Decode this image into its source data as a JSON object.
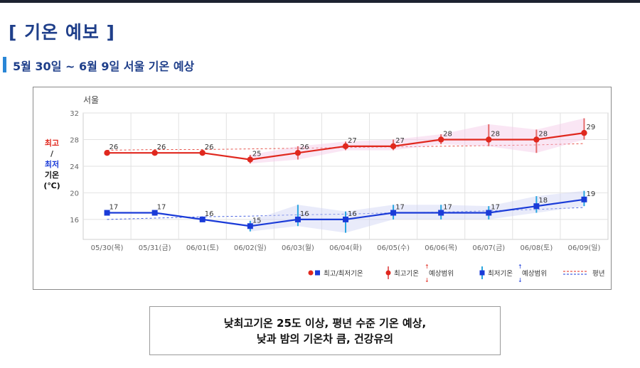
{
  "header": {
    "title": "[ 기온 예보 ]",
    "subtitle": "5월 30일 ~ 6월 9일 서울 기온 예상"
  },
  "caption": {
    "line1": "낮최고기온 25도 이상, 평년 수준 기온 예상,",
    "line2": "낮과 밤의 기온차 큼, 건강유의"
  },
  "chart_data": {
    "type": "line",
    "title": "서울",
    "ylabel_lines": [
      "최고",
      "/",
      "최저",
      "기온",
      "(℃)"
    ],
    "categories": [
      "05/30(목)",
      "05/31(금)",
      "06/01(토)",
      "06/02(일)",
      "06/03(월)",
      "06/04(화)",
      "06/05(수)",
      "06/06(목)",
      "06/07(금)",
      "06/08(토)",
      "06/09(일)"
    ],
    "yticks": [
      16,
      20,
      24,
      28,
      32
    ],
    "ylim": [
      13,
      32
    ],
    "grid": true,
    "series": [
      {
        "name": "최고기온",
        "color": "#e0281e",
        "marker": "circle",
        "values": [
          26,
          26,
          26,
          25,
          26,
          27,
          27,
          28,
          28,
          28,
          29
        ],
        "range_low": [
          null,
          null,
          null,
          24.4,
          25,
          26.4,
          26.4,
          27.3,
          27,
          26,
          28
        ],
        "range_high": [
          null,
          null,
          null,
          25.7,
          27,
          27.7,
          28,
          28.8,
          30.3,
          29.5,
          31.2
        ]
      },
      {
        "name": "최저기온",
        "color": "#1a3bd8",
        "marker": "square",
        "values": [
          17,
          17,
          16,
          15,
          16,
          16,
          17,
          17,
          17,
          18,
          19
        ],
        "range_low": [
          null,
          null,
          null,
          14.2,
          15,
          14,
          16,
          16,
          16,
          17,
          18
        ],
        "range_high": [
          null,
          null,
          null,
          15.8,
          18.2,
          17.2,
          18.2,
          18.2,
          18,
          19.5,
          20.3
        ]
      }
    ],
    "normal": {
      "high": [
        26.4,
        26.5,
        26.5,
        26.6,
        26.7,
        26.8,
        26.9,
        27,
        27.1,
        27.2,
        27.4
      ],
      "low": [
        16,
        16.2,
        16.4,
        16.5,
        16.7,
        16.8,
        17,
        17.1,
        17.3,
        17.5,
        17.8
      ],
      "color_high": "#e0281e",
      "color_low": "#1a3bd8"
    },
    "legend": {
      "placement": "bottom-right",
      "items": [
        "최고/최저기온",
        "최고기온",
        "예상범위",
        "최저기온",
        "예상범위",
        "평년"
      ]
    }
  }
}
